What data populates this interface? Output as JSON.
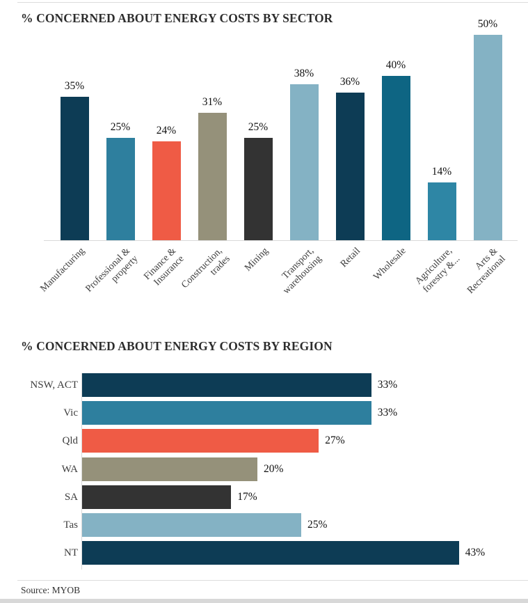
{
  "page": {
    "source": "Source: MYOB"
  },
  "colors": {
    "navy": "#0d3c55",
    "teal": "#2e7f9e",
    "red": "#ef5b45",
    "olive": "#95917a",
    "charcoal": "#333333",
    "light_blue": "#84b2c4",
    "ocean": "#0e6583",
    "teal_light": "#2e86a5",
    "axis_line": "#d9d9d9"
  },
  "chart_data": [
    {
      "type": "bar",
      "orientation": "vertical",
      "title": "% CONCERNED ABOUT ENERGY COSTS BY SECTOR",
      "categories": [
        "Manufacturing",
        "Professional &\nproperty",
        "Finance &\nInsurance",
        "Construction,\ntrades",
        "Mining",
        "Transport,\nwarehousing",
        "Retail",
        "Wholesale",
        "Agriculture,\nforestry &...",
        "Arts &\nRecreational"
      ],
      "values": [
        35,
        25,
        24,
        31,
        25,
        38,
        36,
        40,
        14,
        50
      ],
      "data_labels": [
        "35%",
        "25%",
        "24%",
        "31%",
        "25%",
        "38%",
        "36%",
        "40%",
        "14%",
        "50%"
      ],
      "bar_colors": [
        "#0d3c55",
        "#2e7f9e",
        "#ef5b45",
        "#95917a",
        "#333333",
        "#84b2c4",
        "#0d3c55",
        "#0e6583",
        "#2e86a5",
        "#84b2c4"
      ],
      "ylim": [
        0,
        50
      ],
      "grid": false,
      "legend": "none"
    },
    {
      "type": "bar",
      "orientation": "horizontal",
      "title": "% CONCERNED ABOUT ENERGY COSTS BY REGION",
      "categories": [
        "NSW, ACT",
        "Vic",
        "Qld",
        "WA",
        "SA",
        "Tas",
        "NT"
      ],
      "values": [
        33,
        33,
        27,
        20,
        17,
        25,
        43
      ],
      "data_labels": [
        "33%",
        "33%",
        "27%",
        "20%",
        "17%",
        "25%",
        "43%"
      ],
      "bar_colors": [
        "#0d3c55",
        "#2e7f9e",
        "#ef5b45",
        "#95917a",
        "#333333",
        "#84b2c4",
        "#0d3c55"
      ],
      "xlim": [
        0,
        43
      ],
      "grid": false,
      "legend": "none"
    }
  ]
}
